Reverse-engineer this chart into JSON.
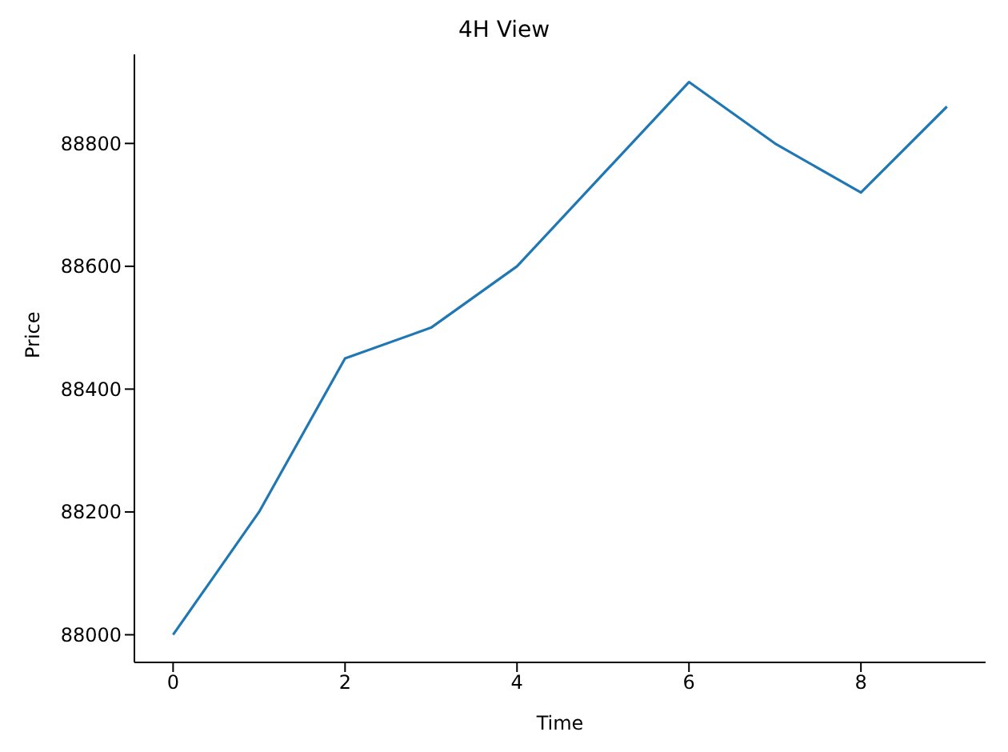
{
  "chart_data": {
    "type": "line",
    "title": "4H View",
    "xlabel": "Time",
    "ylabel": "Price",
    "x": [
      0,
      1,
      2,
      3,
      4,
      5,
      6,
      7,
      8,
      9
    ],
    "series": [
      {
        "color": "#1f77b4",
        "values": [
          88000,
          88200,
          88450,
          88500,
          88600,
          88750,
          88900,
          88800,
          88720,
          88860
        ]
      }
    ],
    "xlim": [
      -0.45,
      9.45
    ],
    "xticks": [
      0,
      2,
      4,
      6,
      8
    ],
    "ylim": [
      87955,
      88945
    ],
    "yticks": [
      88000,
      88200,
      88400,
      88600,
      88800
    ],
    "grid": false,
    "legend": false,
    "marker": "none",
    "line_style": "solid"
  }
}
